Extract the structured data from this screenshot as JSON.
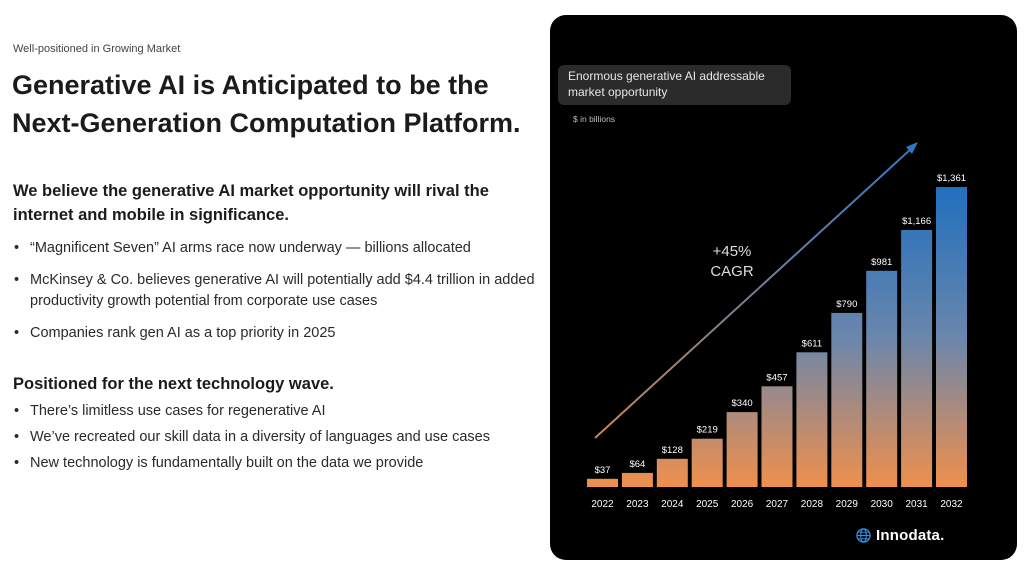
{
  "header": {
    "eyebrow": "Well-positioned in Growing Market",
    "title": "Generative AI is Anticipated to be the Next-Generation Computation Platform."
  },
  "section1": {
    "heading": "We believe the generative AI market opportunity will rival the internet and mobile in significance.",
    "bullets": [
      "“Magnificent Seven” AI arms race now underway — billions allocated",
      "McKinsey & Co. believes generative AI will potentially add $4.4 trillion in added productivity growth potential from corporate use cases",
      "Companies rank gen AI as a top priority in 2025"
    ]
  },
  "section2": {
    "heading": "Positioned for the next technology wave.",
    "bullets": [
      "There’s limitless use cases for regenerative AI",
      "We’ve recreated our skill data in a diversity of languages and use cases",
      "New technology is fundamentally built on the data we provide"
    ]
  },
  "panel": {
    "badge": "Enormous generative AI addressable market opportunity",
    "unit_note": "$ in billions",
    "cagr_value": "+45%",
    "cagr_label": "CAGR",
    "logo": "Innodata."
  },
  "chart_data": {
    "type": "bar",
    "title": "Enormous generative AI addressable market opportunity",
    "ylabel": "$ in billions",
    "categories": [
      "2022",
      "2023",
      "2024",
      "2025",
      "2026",
      "2027",
      "2028",
      "2029",
      "2030",
      "2031",
      "2032"
    ],
    "values": [
      37,
      64,
      128,
      219,
      340,
      457,
      611,
      790,
      981,
      1166,
      1361
    ],
    "value_labels": [
      "$37",
      "$64",
      "$128",
      "$219",
      "$340",
      "$457",
      "$611",
      "$790",
      "$981",
      "$1,166",
      "$1,361"
    ],
    "ylim": [
      0,
      1361
    ],
    "grid": false,
    "annotations": [
      "+45%",
      "CAGR"
    ],
    "colors": {
      "bar_top": "#1f6fbf",
      "bar_bottom": "#f2904a",
      "arrow": "#2f78c4",
      "background": "#000000"
    }
  }
}
